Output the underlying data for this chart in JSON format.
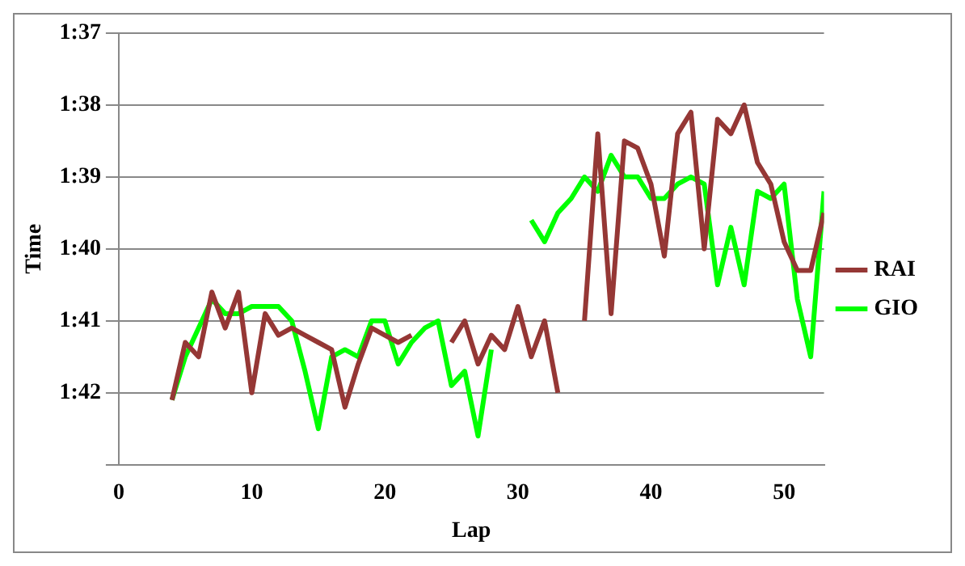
{
  "chart_data": {
    "type": "line",
    "xlabel": "Lap",
    "ylabel": "Time",
    "x": [
      4,
      5,
      6,
      7,
      8,
      9,
      10,
      11,
      12,
      13,
      14,
      15,
      16,
      17,
      18,
      19,
      20,
      21,
      22,
      23,
      24,
      25,
      26,
      27,
      28,
      29,
      30,
      31,
      32,
      33,
      34,
      35,
      36,
      37,
      38,
      39,
      40,
      41,
      42,
      43,
      44,
      45,
      46,
      47,
      48,
      49,
      50,
      51,
      52,
      53
    ],
    "series": [
      {
        "name": "RAI",
        "color": "#953735",
        "values": [
          102.1,
          101.3,
          101.5,
          100.6,
          101.1,
          100.6,
          102.0,
          100.9,
          101.2,
          101.1,
          101.2,
          101.3,
          101.4,
          102.2,
          101.6,
          101.1,
          101.2,
          101.3,
          101.2,
          null,
          null,
          101.3,
          101.0,
          101.6,
          101.2,
          101.4,
          100.8,
          101.5,
          101.0,
          102.0,
          null,
          101.0,
          98.4,
          100.9,
          98.5,
          98.6,
          99.1,
          100.1,
          98.4,
          98.1,
          100.0,
          98.2,
          98.4,
          98.0,
          98.8,
          99.1,
          99.9,
          100.3,
          100.3,
          99.5
        ]
      },
      {
        "name": "GIO",
        "color": "#00ff00",
        "values": [
          102.1,
          101.5,
          101.1,
          100.7,
          100.9,
          100.9,
          100.8,
          100.8,
          100.8,
          101.0,
          101.7,
          102.5,
          101.5,
          101.4,
          101.5,
          101.0,
          101.0,
          101.6,
          101.3,
          101.1,
          101.0,
          101.9,
          101.7,
          102.6,
          101.4,
          null,
          null,
          99.6,
          99.9,
          99.5,
          99.3,
          99.0,
          99.2,
          98.7,
          99.0,
          99.0,
          99.3,
          99.3,
          99.1,
          99.0,
          99.1,
          100.5,
          99.7,
          100.5,
          99.2,
          99.3,
          99.1,
          100.7,
          101.5,
          99.2
        ]
      }
    ],
    "xlim": [
      0,
      53
    ],
    "xticks": [
      0,
      10,
      20,
      30,
      40,
      50
    ],
    "ylim": [
      103,
      97
    ],
    "yticks": [
      {
        "value": 97,
        "label": "1:37"
      },
      {
        "value": 98,
        "label": "1:38"
      },
      {
        "value": 99,
        "label": "1:39"
      },
      {
        "value": 100,
        "label": "1:40"
      },
      {
        "value": 101,
        "label": "1:41"
      },
      {
        "value": 102,
        "label": "1:42"
      },
      {
        "value": 103,
        "label": null
      }
    ],
    "grid": "y",
    "legend": "right",
    "marker": "none",
    "line_style": "solid"
  }
}
